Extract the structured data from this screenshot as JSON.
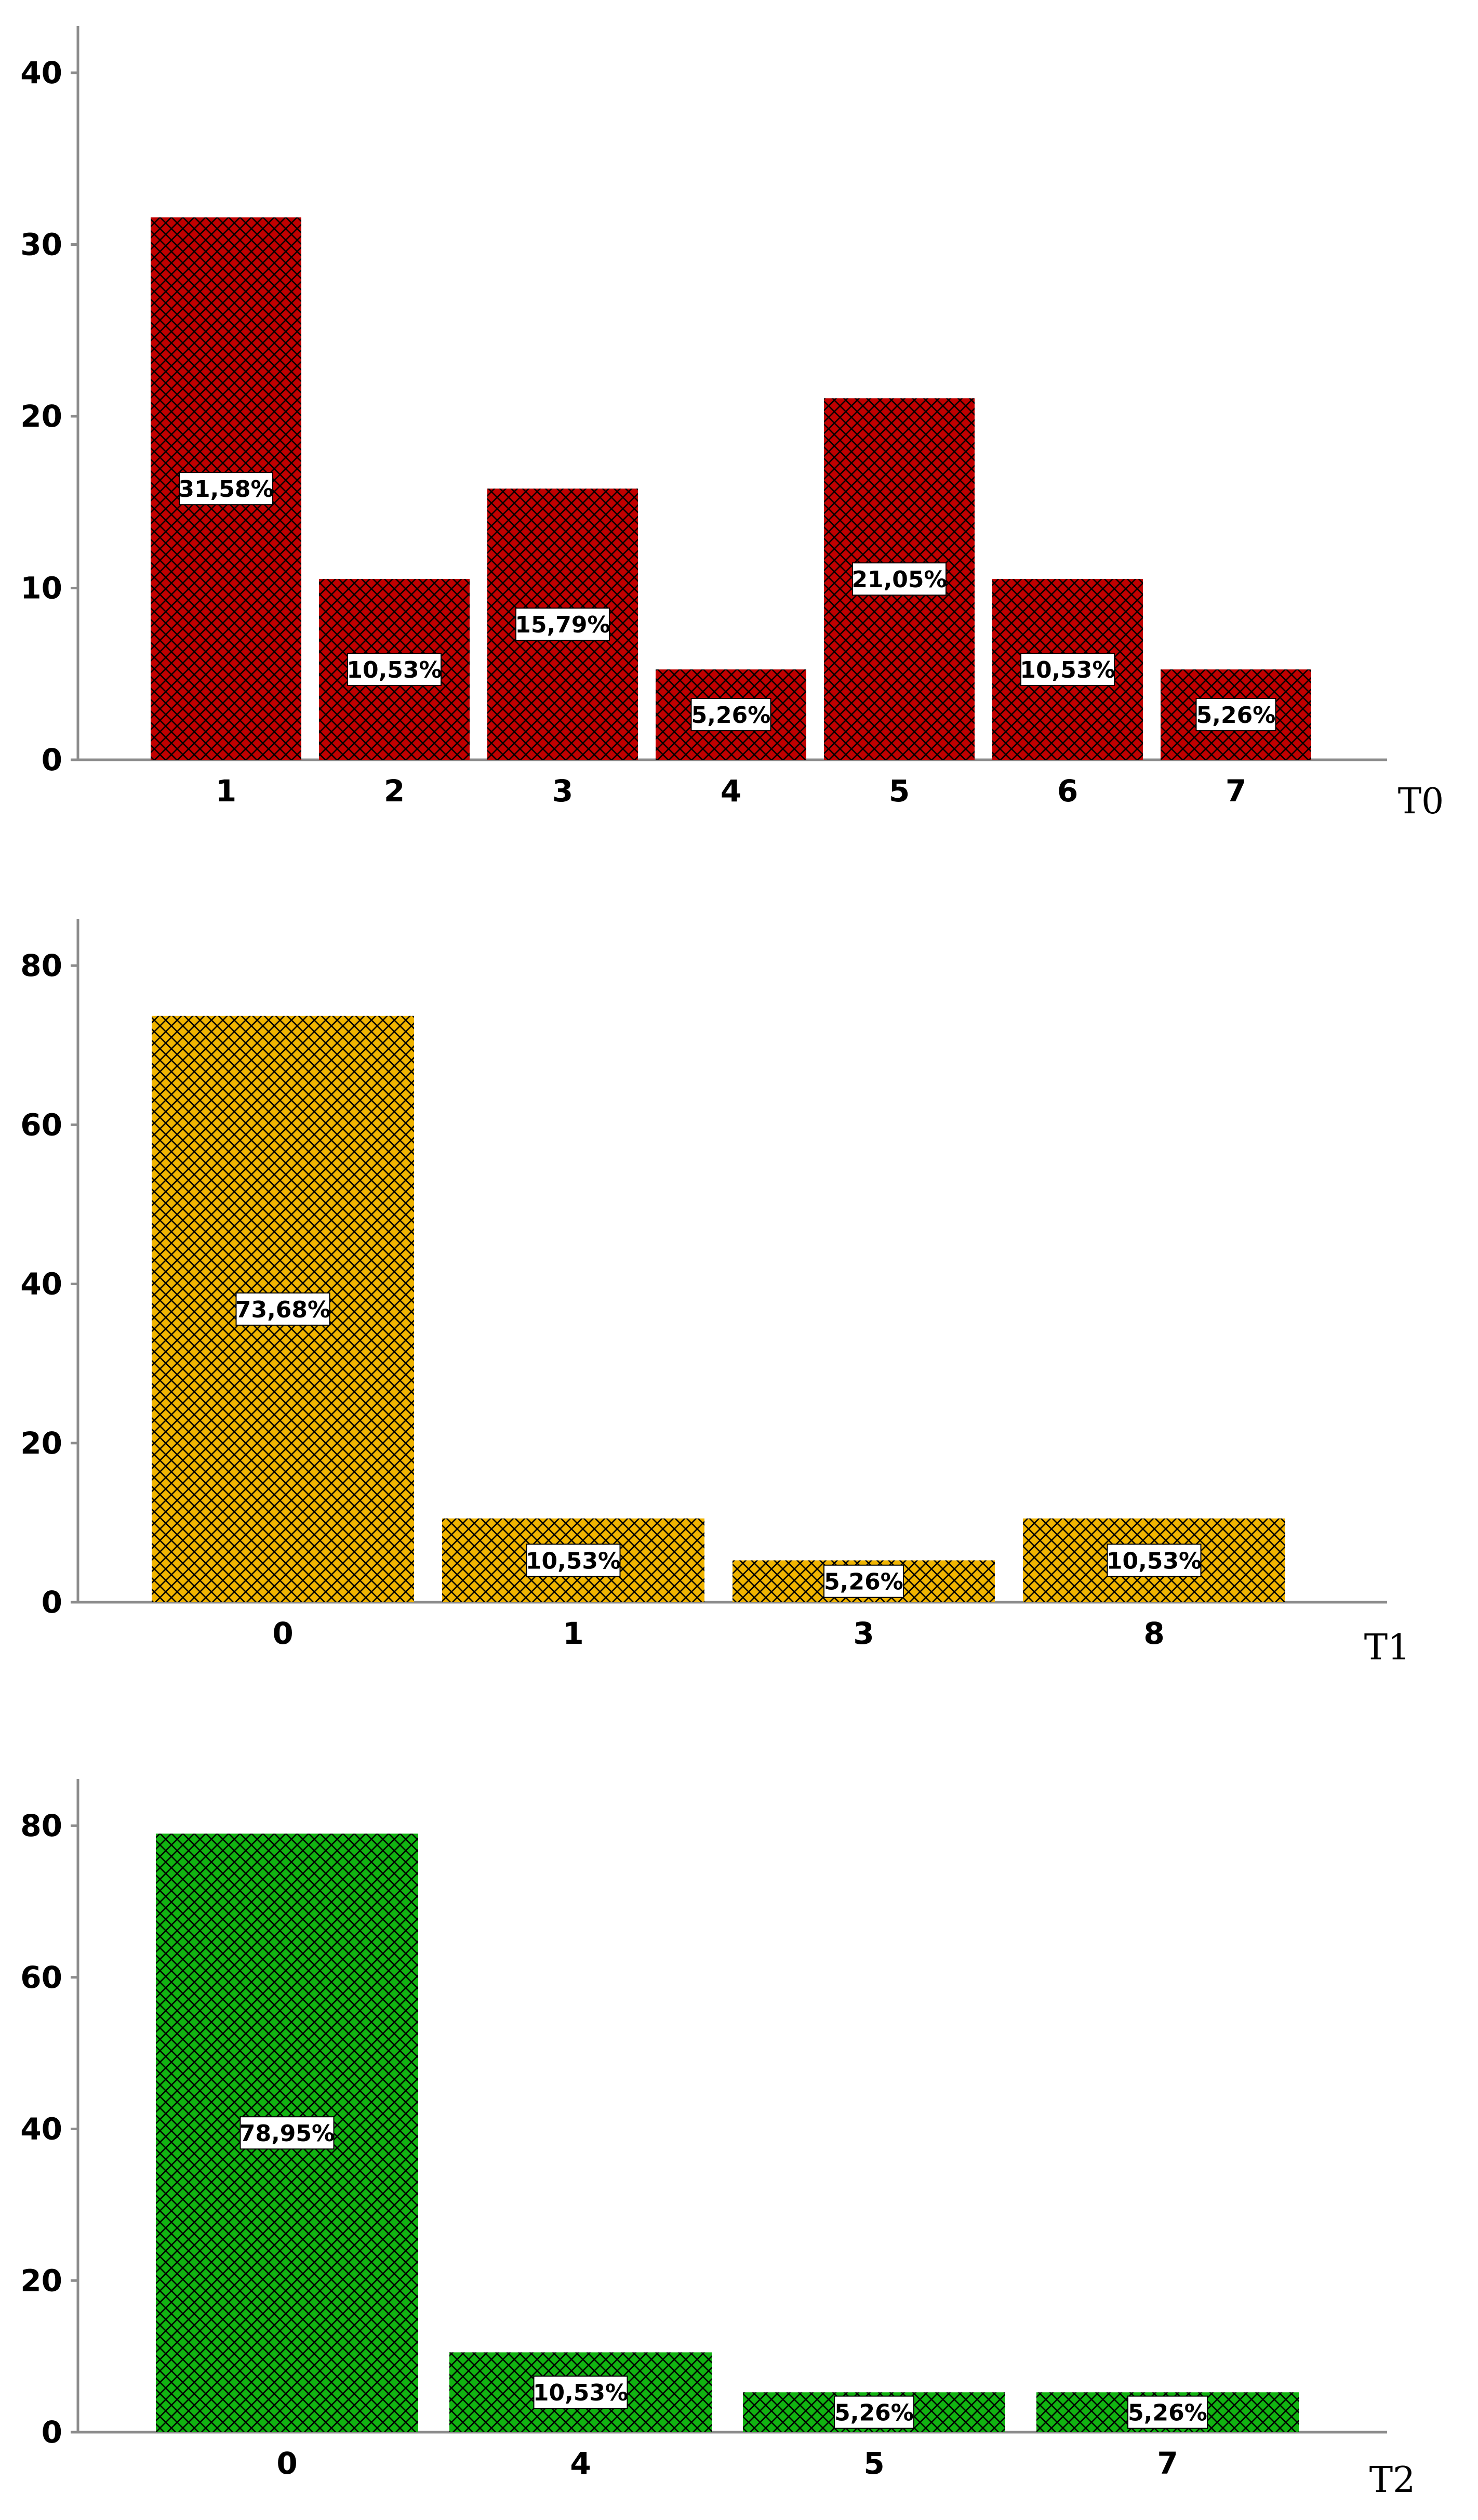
{
  "chart_data": [
    {
      "type": "bar",
      "panel_label": "T0",
      "color": "#c00000",
      "pattern": "crosshatch",
      "ylim": [
        0,
        40
      ],
      "yticks": [
        0,
        10,
        20,
        30,
        40
      ],
      "categories": [
        "1",
        "2",
        "3",
        "4",
        "5",
        "6",
        "7"
      ],
      "values": [
        31.58,
        10.53,
        15.79,
        5.26,
        21.05,
        10.53,
        5.26
      ],
      "data_labels": [
        "31,58%",
        "10,53%",
        "15,79%",
        "5,26%",
        "21,05%",
        "10,53%",
        "5,26%"
      ],
      "grid": false
    },
    {
      "type": "bar",
      "panel_label": "T1",
      "color": "#f0b400",
      "pattern": "crosshatch",
      "ylim": [
        0,
        80
      ],
      "yticks": [
        0,
        20,
        40,
        60,
        80
      ],
      "categories": [
        "0",
        "1",
        "3",
        "8"
      ],
      "values": [
        73.68,
        10.53,
        5.26,
        10.53
      ],
      "data_labels": [
        "73,68%",
        "10,53%",
        "5,26%",
        "10,53%"
      ],
      "grid": false
    },
    {
      "type": "bar",
      "panel_label": "T2",
      "color": "#11b311",
      "pattern": "crosshatch",
      "ylim": [
        0,
        80
      ],
      "yticks": [
        0,
        20,
        40,
        60,
        80
      ],
      "categories": [
        "0",
        "4",
        "5",
        "7"
      ],
      "values": [
        78.95,
        10.53,
        5.26,
        5.26
      ],
      "data_labels": [
        "78,95%",
        "10,53%",
        "5,26%",
        "5,26%"
      ],
      "grid": false
    }
  ]
}
